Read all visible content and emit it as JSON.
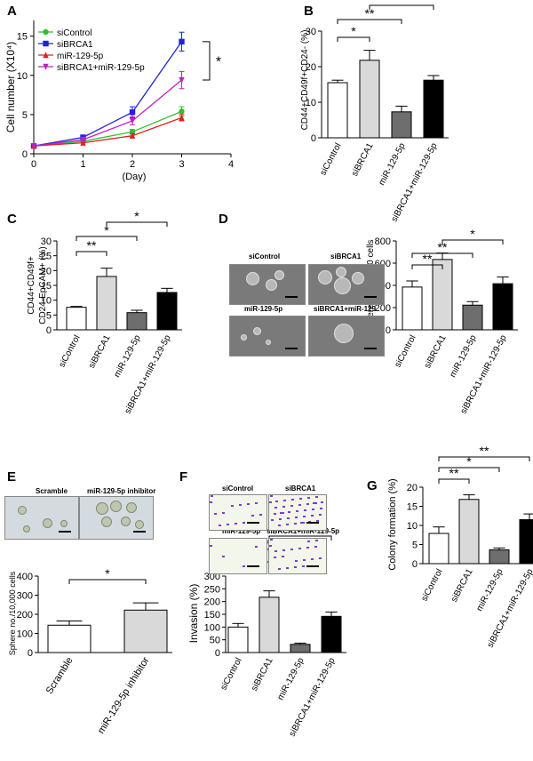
{
  "panel_letters": [
    "A",
    "B",
    "C",
    "D",
    "E",
    "F",
    "G"
  ],
  "colors": {
    "green": "#2ec02e",
    "blue": "#2222dd",
    "red": "#e02020",
    "magenta": "#c020c0",
    "white": "#ffffff",
    "lightgray": "#d9d9d9",
    "darkgray": "#6e6e6e",
    "black": "#000000"
  },
  "micrographs": {
    "D": [
      "siControl",
      "siBRCA1",
      "miR-129-5p",
      "siBRCA1+miR-129"
    ],
    "E": [
      "Scramble",
      "miR-129-5p inhibitor"
    ],
    "F": [
      "siControl",
      "siBRCA1",
      "miR-129-5p",
      "siBRCA1+miR-129-5p"
    ]
  },
  "chart_data": [
    {
      "panel": "A",
      "type": "line",
      "xlabel": "(Day)",
      "ylabel": "Cell number (X10⁴)",
      "x": [
        0,
        1,
        2,
        3
      ],
      "xlim": [
        0,
        4
      ],
      "ylim": [
        0,
        17
      ],
      "xticks": [
        "0",
        "1",
        "2",
        "3",
        "4"
      ],
      "yticks": [
        "0",
        "5",
        "10",
        "15"
      ],
      "series": [
        {
          "name": "siControl",
          "marker": "circle",
          "color": "#2ec02e",
          "values": [
            1.0,
            1.6,
            2.8,
            5.4
          ],
          "errors": [
            0.1,
            0.15,
            0.3,
            0.6
          ]
        },
        {
          "name": "siBRCA1",
          "marker": "square",
          "color": "#2222dd",
          "values": [
            1.0,
            2.1,
            5.3,
            14.3
          ],
          "errors": [
            0.1,
            0.2,
            0.7,
            1.2
          ]
        },
        {
          "name": "miR-129-5p",
          "marker": "triangle",
          "color": "#e02020",
          "values": [
            1.0,
            1.4,
            2.3,
            4.6
          ],
          "errors": [
            0.1,
            0.1,
            0.25,
            0.4
          ]
        },
        {
          "name": "siBRCA1+miR-129-5p",
          "marker": "triangle-down",
          "color": "#c020c0",
          "values": [
            1.0,
            1.8,
            4.2,
            9.4
          ],
          "errors": [
            0.1,
            0.2,
            0.5,
            1.1
          ]
        }
      ],
      "annotations": [
        "*"
      ]
    },
    {
      "panel": "B",
      "type": "bar",
      "ylabel": "CD44+CD49f+CD24- (%)",
      "categories": [
        "siControl",
        "siBRCA1",
        "miR-129-5p",
        "siBRCA1+miR-129-5p"
      ],
      "values": [
        15.5,
        21.8,
        7.3,
        16.2
      ],
      "errors": [
        0.7,
        2.8,
        1.6,
        1.3
      ],
      "ylim": [
        0,
        30
      ],
      "yticks": [
        "0",
        "10",
        "20",
        "30"
      ],
      "significance": [
        {
          "from": 0,
          "to": 1,
          "label": "*"
        },
        {
          "from": 0,
          "to": 2,
          "label": "**"
        },
        {
          "from": 1,
          "to": 3,
          "label": "*"
        }
      ]
    },
    {
      "panel": "C",
      "type": "bar",
      "ylabel": "CD44+CD49f+ CD24-EpCAM+ (%)",
      "ylabel_lines": [
        "CD44+CD49f+",
        "CD24-EpCAM+ (%)"
      ],
      "categories": [
        "siControl",
        "siBRCA1",
        "miR-129-5p",
        "siBRCA1+miR-129-5p"
      ],
      "values": [
        7.6,
        18.0,
        5.8,
        12.6
      ],
      "errors": [
        0.3,
        2.8,
        0.8,
        1.4
      ],
      "ylim": [
        0,
        30
      ],
      "yticks": [
        "0",
        "5",
        "10",
        "15",
        "20",
        "25",
        "30"
      ],
      "significance": [
        {
          "from": 0,
          "to": 1,
          "label": "**"
        },
        {
          "from": 0,
          "to": 2,
          "label": "*"
        },
        {
          "from": 1,
          "to": 3,
          "label": "*"
        }
      ]
    },
    {
      "panel": "D",
      "type": "bar",
      "ylabel": "Sphere no./10,000 cells",
      "categories": [
        "siControl",
        "siBRCA1",
        "miR-129-5p",
        "siBRCA1+miR-129-5p"
      ],
      "values": [
        385,
        633,
        222,
        415
      ],
      "errors": [
        55,
        58,
        32,
        60
      ],
      "ylim": [
        0,
        800
      ],
      "yticks": [
        "0",
        "200",
        "400",
        "600",
        "800"
      ],
      "significance": [
        {
          "from": 0,
          "to": 1,
          "label": "**"
        },
        {
          "from": 0,
          "to": 2,
          "label": "**"
        },
        {
          "from": 1,
          "to": 3,
          "label": "*"
        }
      ]
    },
    {
      "panel": "E",
      "type": "bar",
      "ylabel": "Sphere no./10,000 cells",
      "categories": [
        "Scramble",
        "miR-129-5p inhibitor"
      ],
      "values": [
        143,
        222
      ],
      "errors": [
        22,
        38
      ],
      "ylim": [
        0,
        400
      ],
      "yticks": [
        "0",
        "100",
        "200",
        "300",
        "400"
      ],
      "significance": [
        {
          "from": 0,
          "to": 1,
          "label": "*"
        }
      ]
    },
    {
      "panel": "F",
      "type": "bar",
      "ylabel": "Invasion (%)",
      "categories": [
        "siControl",
        "siBRCA1",
        "miR-129-5p",
        "siBRCA1+miR-129-5p"
      ],
      "values": [
        100,
        217,
        32,
        142
      ],
      "errors": [
        14,
        25,
        5,
        17
      ],
      "ylim": [
        0,
        300
      ],
      "yticks": [
        "0",
        "50",
        "100",
        "150",
        "200",
        "250",
        "300"
      ],
      "significance": [
        {
          "from": 0,
          "to": 1,
          "label": "**"
        },
        {
          "from": 0,
          "to": 2,
          "label": "**"
        },
        {
          "from": 1,
          "to": 3,
          "label": "*"
        }
      ]
    },
    {
      "panel": "G",
      "type": "bar",
      "ylabel": "Colony formation (%)",
      "categories": [
        "siControl",
        "siBRCA1",
        "miR-129-5p",
        "siBRCA1+miR-129-5p"
      ],
      "values": [
        7.9,
        16.8,
        3.6,
        11.5
      ],
      "errors": [
        1.7,
        1.2,
        0.5,
        1.5
      ],
      "ylim": [
        0,
        20
      ],
      "yticks": [
        "0",
        "5",
        "10",
        "15",
        "20"
      ],
      "significance": [
        {
          "from": 0,
          "to": 1,
          "label": "**"
        },
        {
          "from": 0,
          "to": 2,
          "label": "*"
        },
        {
          "from": 0,
          "to": 3,
          "label": "**"
        }
      ]
    }
  ]
}
